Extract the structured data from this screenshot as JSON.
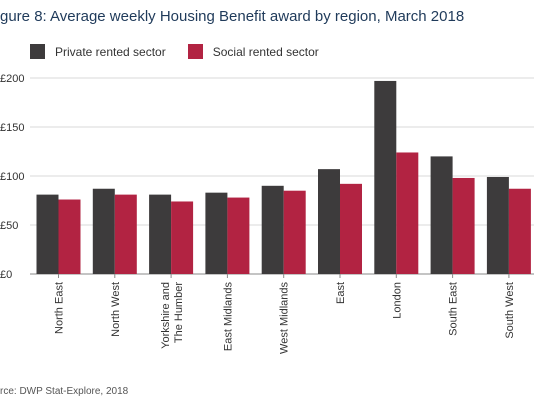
{
  "figure": {
    "title": "gure 8: Average weekly Housing Benefit award by region, March 2018",
    "source": "rce: DWP Stat-Explore, 2018"
  },
  "colors": {
    "private": "#3d3b3c",
    "social": "#b22342",
    "grid": "#d9d9d9",
    "axis": "#8a8a8a"
  },
  "chart_data": {
    "type": "bar",
    "categories": [
      "North East",
      "North West",
      "Yorkshire and The Humber",
      "East Midlands",
      "West Midlands",
      "East",
      "London",
      "South East",
      "South West"
    ],
    "category_lines": [
      [
        "North East"
      ],
      [
        "North West"
      ],
      [
        "Yorkshire and",
        "The Humber"
      ],
      [
        "East Midlands"
      ],
      [
        "West Midlands"
      ],
      [
        "East"
      ],
      [
        "London"
      ],
      [
        "South East"
      ],
      [
        "South West"
      ]
    ],
    "series": [
      {
        "name": "Private rented sector",
        "values": [
          81,
          87,
          81,
          83,
          90,
          107,
          197,
          120,
          99
        ]
      },
      {
        "name": "Social rented sector",
        "values": [
          76,
          81,
          74,
          78,
          85,
          92,
          124,
          98,
          87
        ]
      }
    ],
    "ylim": [
      0,
      200
    ],
    "yticks": [
      0,
      50,
      100,
      150,
      200
    ],
    "ytick_labels": [
      "£0",
      "£50",
      "£100",
      "£150",
      "£200"
    ],
    "grid": true,
    "legend": "top-left"
  }
}
